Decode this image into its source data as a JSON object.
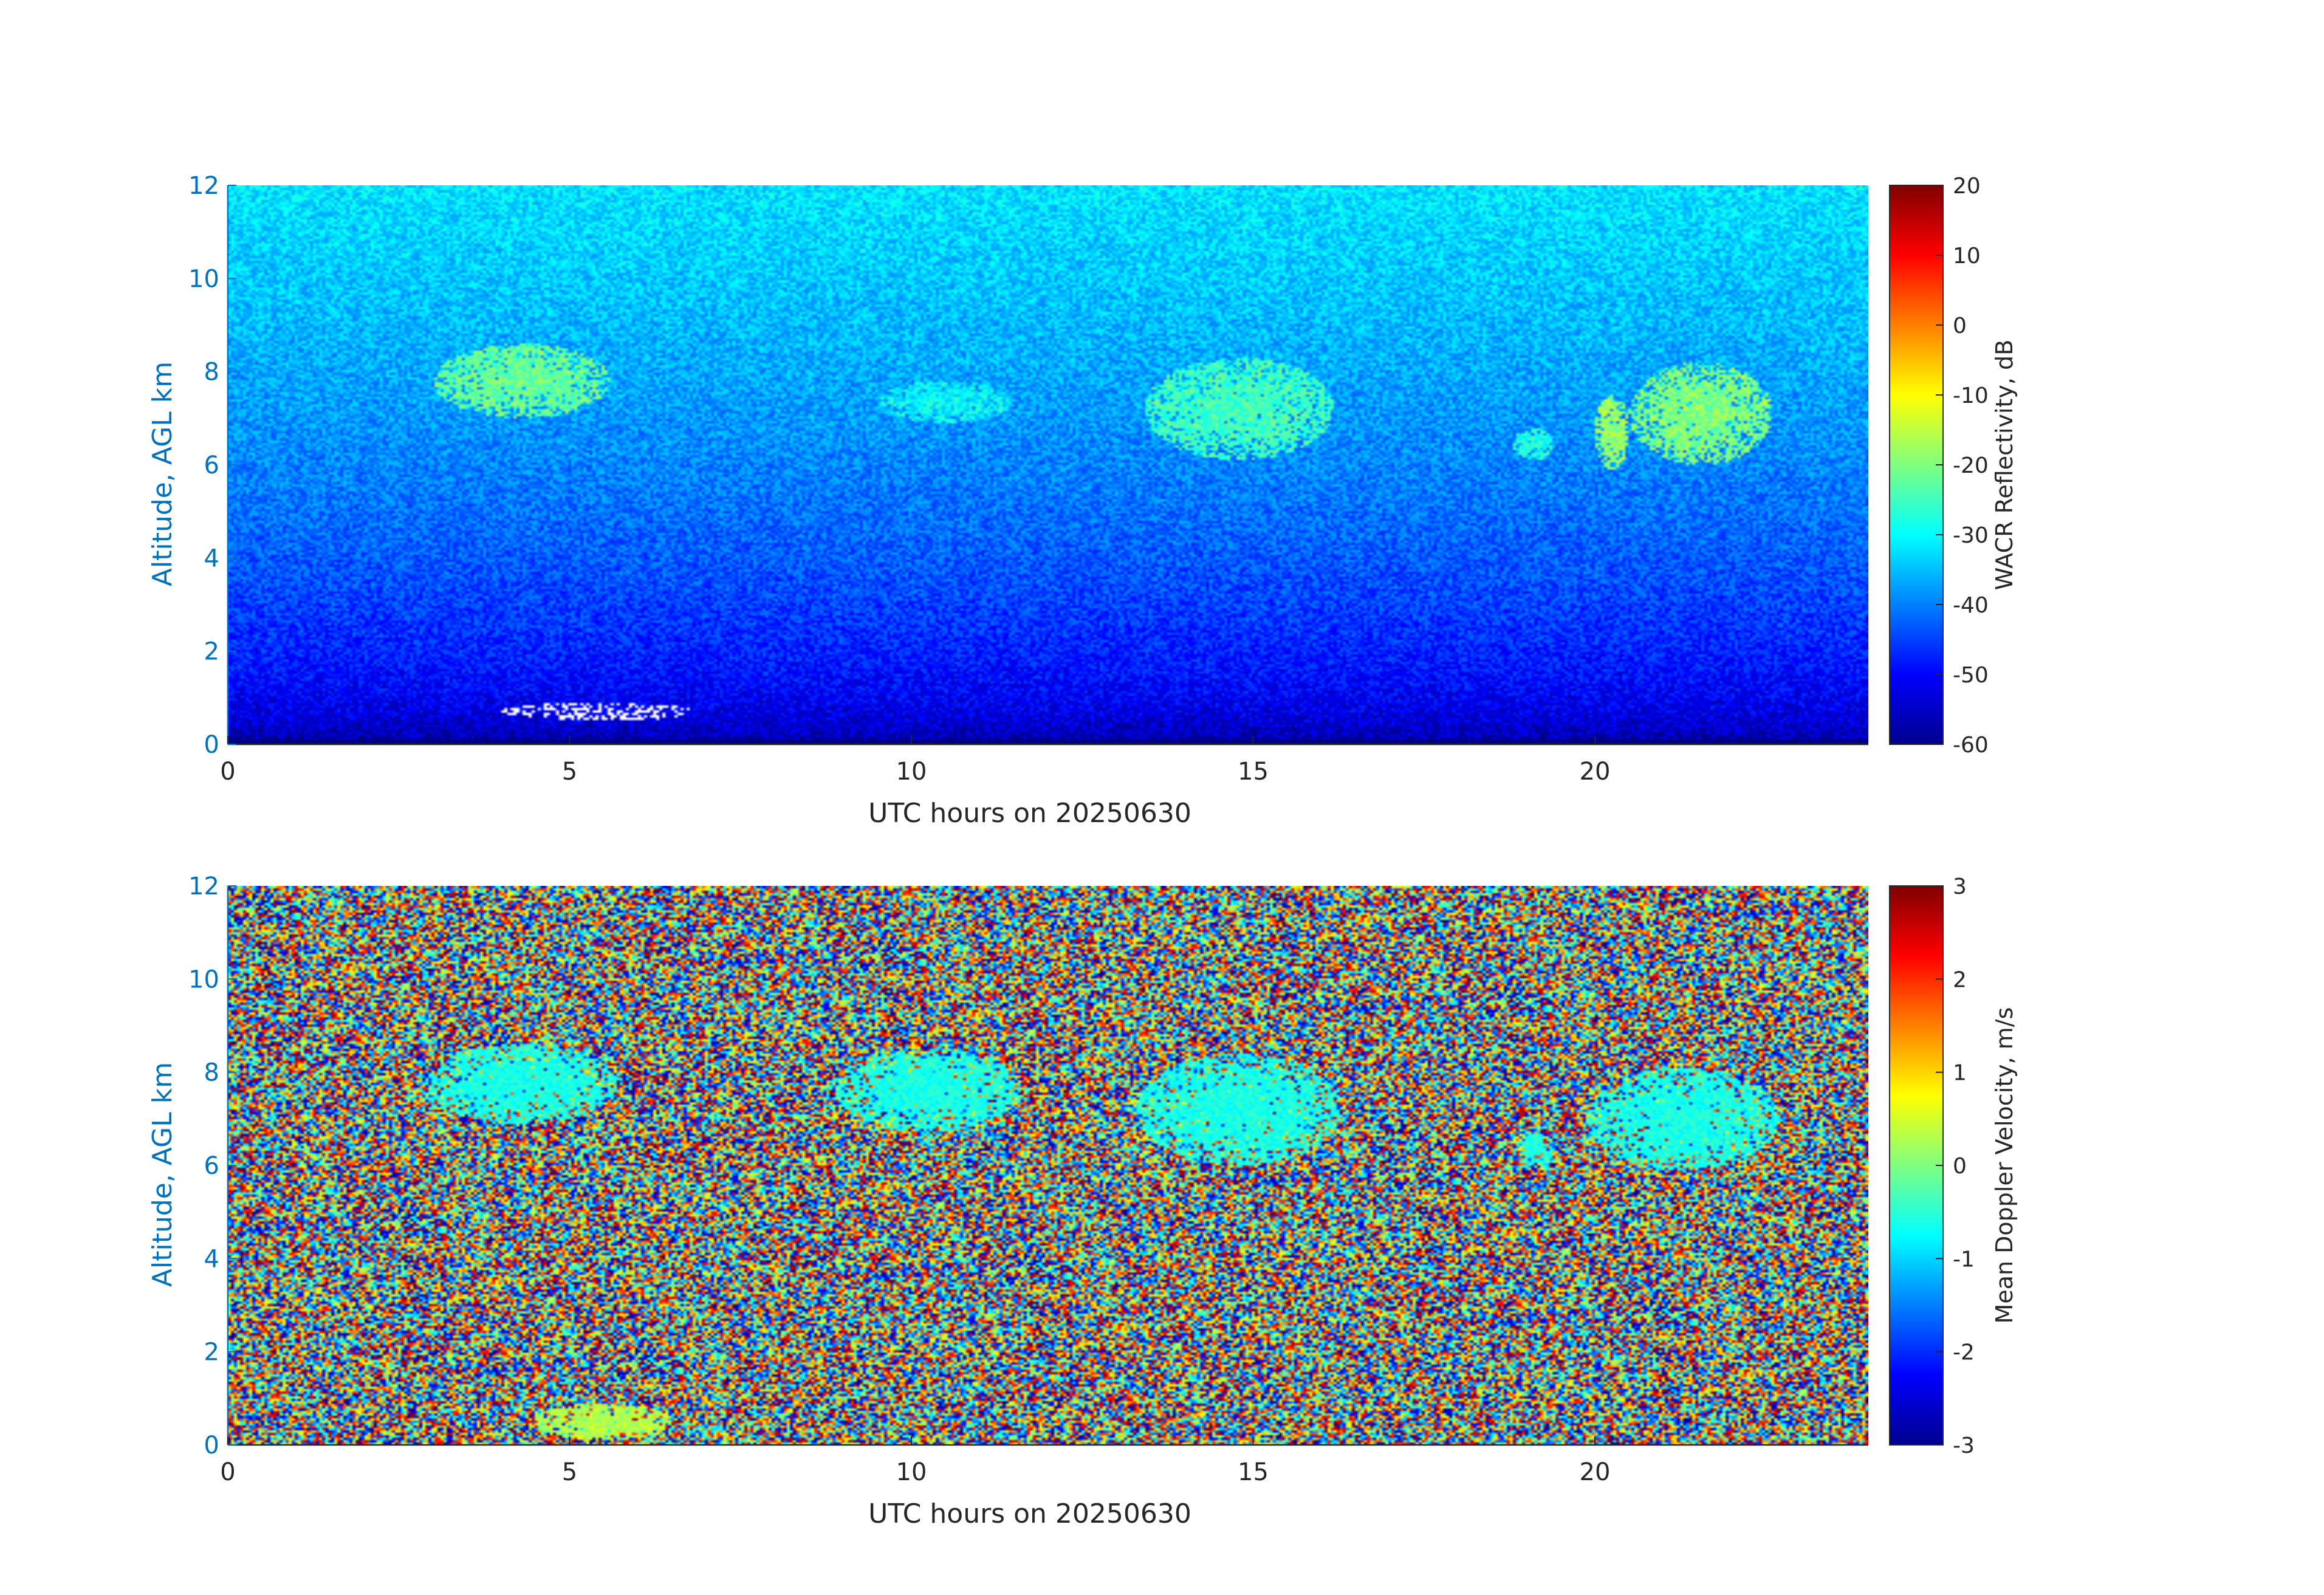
{
  "chart_data": [
    {
      "type": "heatmap",
      "title": "",
      "xlabel": "UTC hours on 20250630",
      "ylabel": "Altitude, AGL km",
      "xlim": [
        0,
        24
      ],
      "ylim": [
        0,
        12
      ],
      "xticks": [
        0,
        5,
        10,
        15,
        20
      ],
      "yticks": [
        0,
        2,
        4,
        6,
        8,
        10,
        12
      ],
      "colorbar": {
        "label": "WACR Reflectivity, dB",
        "range": [
          -60,
          20
        ],
        "ticks": [
          20,
          10,
          0,
          -10,
          -20,
          -30,
          -40,
          -50,
          -60
        ],
        "colormap": "jet"
      },
      "background": "noise increasing from about -60 dB near the surface to about -32 dB at 12 km",
      "features": [
        {
          "x": [
            3.0,
            5.6
          ],
          "y": [
            7.0,
            8.6
          ],
          "value": -22
        },
        {
          "x": [
            9.5,
            11.5
          ],
          "y": [
            6.9,
            7.8
          ],
          "value": -30
        },
        {
          "x": [
            13.4,
            16.2
          ],
          "y": [
            6.1,
            8.3
          ],
          "value": -25
        },
        {
          "x": [
            18.8,
            19.4
          ],
          "y": [
            6.1,
            6.8
          ],
          "value": -28
        },
        {
          "x": [
            20.0,
            20.5
          ],
          "y": [
            5.9,
            7.5
          ],
          "value": -18
        },
        {
          "x": [
            20.5,
            22.6
          ],
          "y": [
            6.0,
            8.2
          ],
          "value": -20
        },
        {
          "x": [
            4.0,
            6.8
          ],
          "y": [
            0.5,
            0.9
          ],
          "value": "missing"
        }
      ]
    },
    {
      "type": "heatmap",
      "title": "",
      "xlabel": "UTC hours on 20250630",
      "ylabel": "Altitude, AGL km",
      "xlim": [
        0,
        24
      ],
      "ylim": [
        0,
        12
      ],
      "xticks": [
        0,
        5,
        10,
        15,
        20
      ],
      "yticks": [
        0,
        2,
        4,
        6,
        8,
        10,
        12
      ],
      "colorbar": {
        "label": "Mean Doppler Velocity, m/s",
        "range": [
          -3,
          3
        ],
        "ticks": [
          3,
          2,
          1,
          0,
          -1,
          -2,
          -3
        ],
        "colormap": "jet"
      },
      "background": "random noise spanning -3 to 3 m/s",
      "features": [
        {
          "x": [
            2.9,
            5.7
          ],
          "y": [
            6.9,
            8.6
          ],
          "value": -0.6
        },
        {
          "x": [
            8.9,
            11.6
          ],
          "y": [
            6.7,
            8.5
          ],
          "value": -0.6
        },
        {
          "x": [
            13.3,
            16.3
          ],
          "y": [
            6.0,
            8.4
          ],
          "value": -0.6
        },
        {
          "x": [
            18.9,
            19.4
          ],
          "y": [
            6.0,
            6.7
          ],
          "value": -0.6
        },
        {
          "x": [
            19.9,
            22.7
          ],
          "y": [
            5.9,
            8.1
          ],
          "value": -0.6
        },
        {
          "x": [
            4.5,
            6.5
          ],
          "y": [
            0.1,
            0.9
          ],
          "value": 0.3
        }
      ]
    }
  ]
}
